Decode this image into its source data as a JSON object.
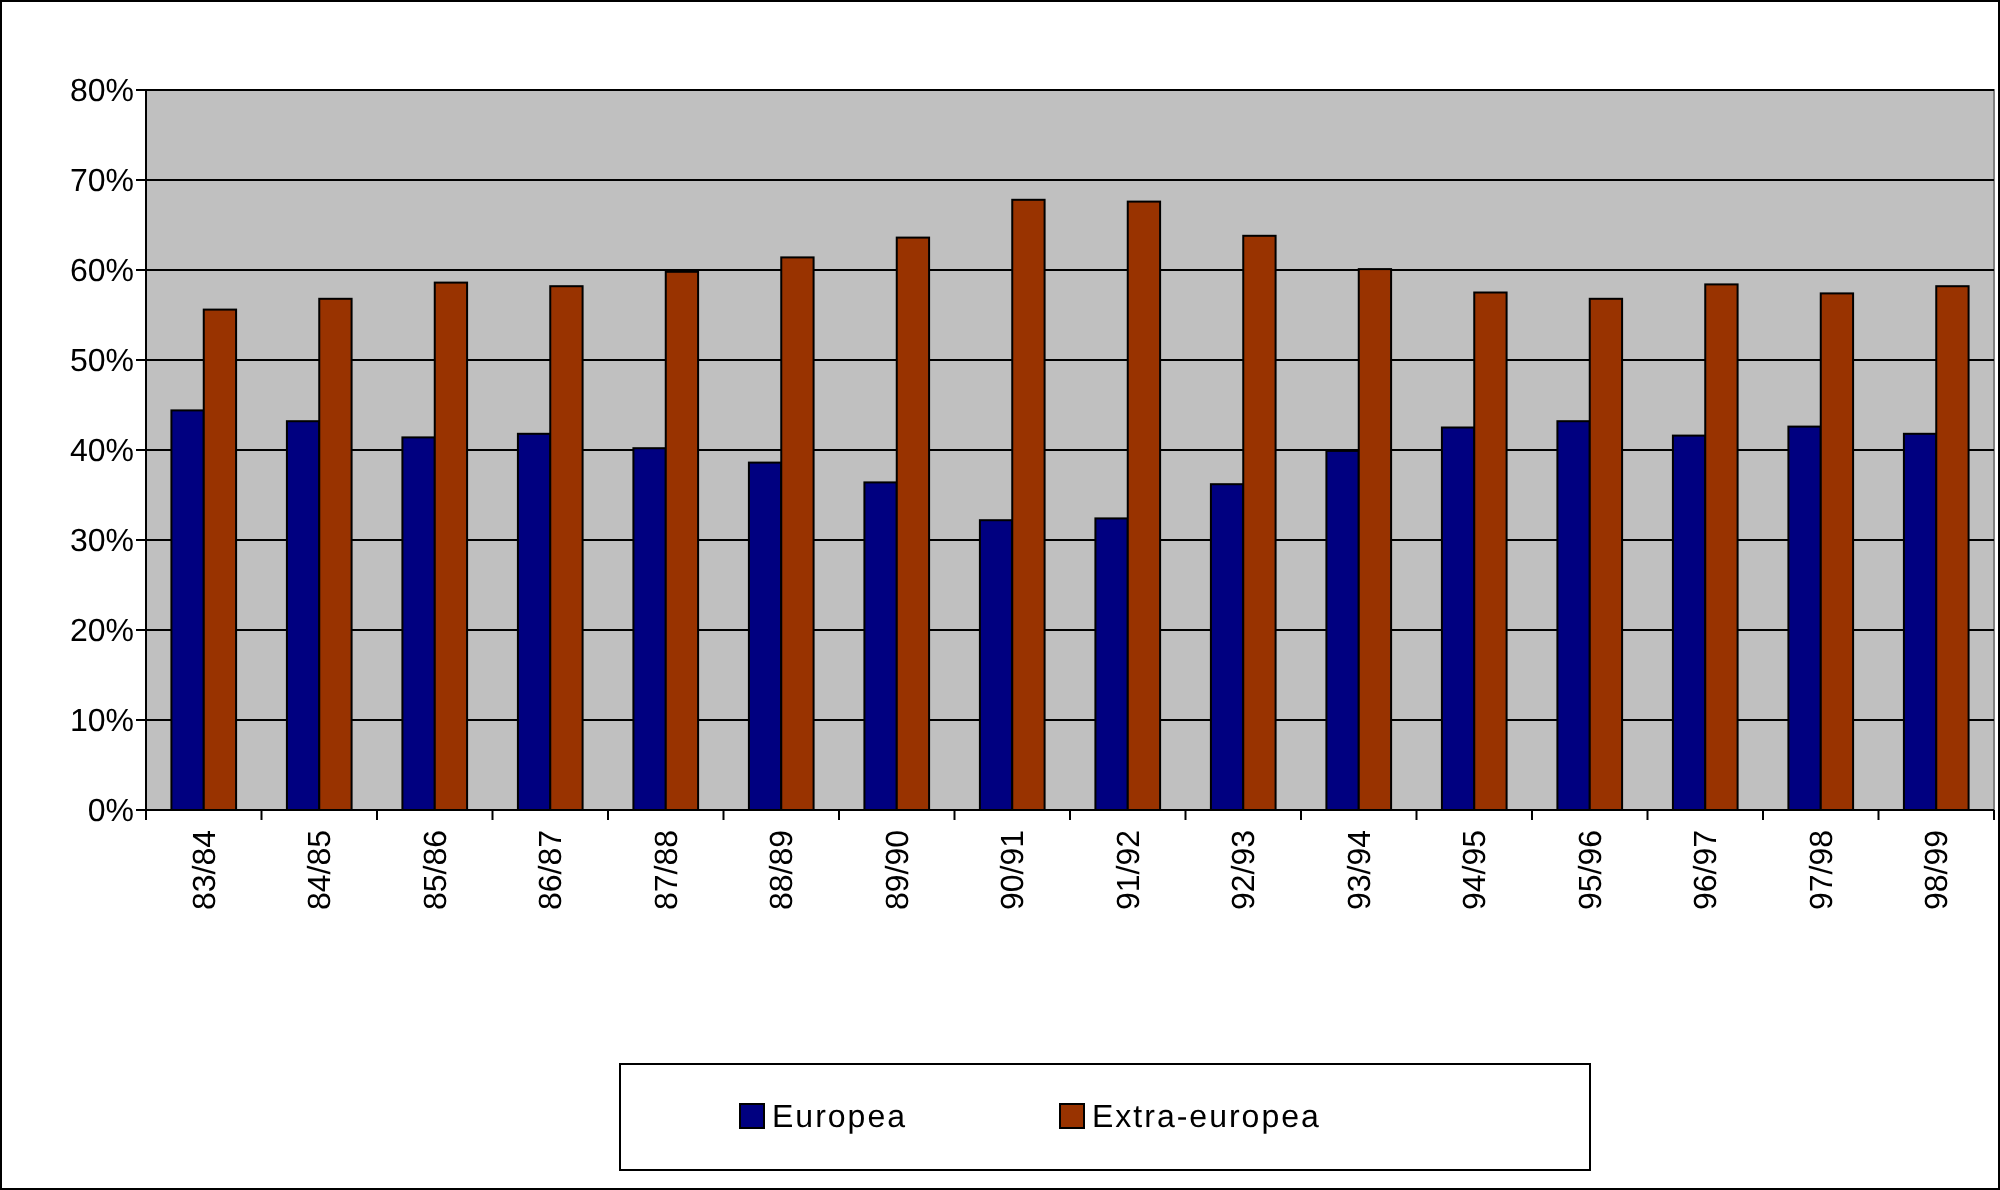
{
  "chart_data": {
    "type": "bar",
    "categories": [
      "83/84",
      "84/85",
      "85/86",
      "86/87",
      "87/88",
      "88/89",
      "89/90",
      "90/91",
      "91/92",
      "92/93",
      "93/94",
      "94/95",
      "95/96",
      "96/97",
      "97/98",
      "98/99"
    ],
    "series": [
      {
        "name": "Europea",
        "color": "#000080",
        "values": [
          44.4,
          43.2,
          41.4,
          41.8,
          40.2,
          38.6,
          36.4,
          32.2,
          32.4,
          36.2,
          39.9,
          42.5,
          43.2,
          41.6,
          42.6,
          41.8
        ]
      },
      {
        "name": "Extra-europea",
        "color": "#993300",
        "values": [
          55.6,
          56.8,
          58.6,
          58.2,
          59.8,
          61.4,
          63.6,
          67.8,
          67.6,
          63.8,
          60.1,
          57.5,
          56.8,
          58.4,
          57.4,
          58.2
        ]
      }
    ],
    "ylim": [
      0,
      80
    ],
    "yticks": [
      {
        "value": 0,
        "label": "0%"
      },
      {
        "value": 10,
        "label": "10%"
      },
      {
        "value": 20,
        "label": "20%"
      },
      {
        "value": 30,
        "label": "30%"
      },
      {
        "value": 40,
        "label": "40%"
      },
      {
        "value": 50,
        "label": "50%"
      },
      {
        "value": 60,
        "label": "60%"
      },
      {
        "value": 70,
        "label": "70%"
      },
      {
        "value": 80,
        "label": "80%"
      }
    ],
    "grid": "y",
    "legend": "bottom"
  }
}
